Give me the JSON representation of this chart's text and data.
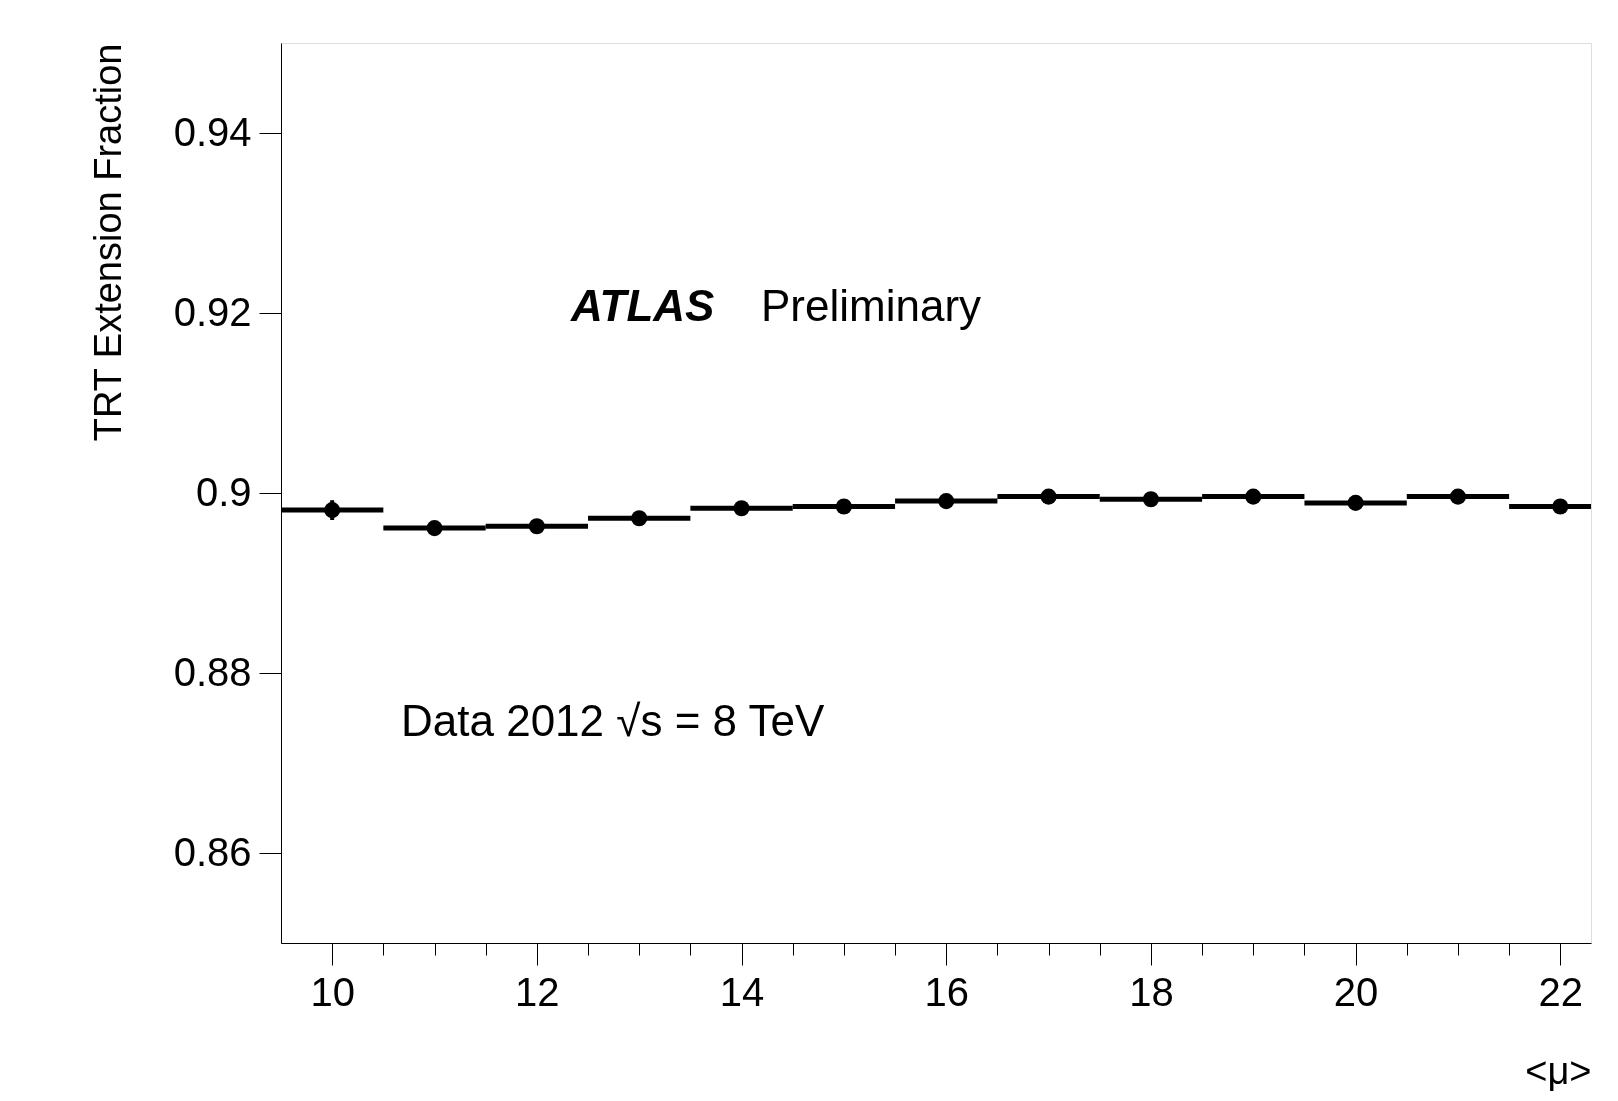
{
  "chart_data": {
    "type": "scatter",
    "xlabel": "<μ>",
    "ylabel": "TRT Extension Fraction",
    "annotations": [
      "ATLAS",
      "Preliminary",
      "Data 2012 √s = 8 TeV"
    ],
    "x": [
      10,
      11,
      12,
      13,
      14,
      15,
      16,
      17,
      18,
      19,
      20,
      21,
      22
    ],
    "values": [
      0.8981,
      0.8961,
      0.8963,
      0.8972,
      0.8983,
      0.8985,
      0.8991,
      0.8996,
      0.8993,
      0.8996,
      0.8989,
      0.8996,
      0.8985
    ],
    "errors": [
      0.0011,
      null,
      null,
      null,
      null,
      null,
      null,
      null,
      null,
      null,
      null,
      null,
      null
    ],
    "xerrors": [
      0.5,
      0.5,
      0.5,
      0.5,
      0.5,
      0.5,
      0.5,
      0.5,
      0.5,
      0.5,
      0.5,
      0.5,
      0.5
    ],
    "color": "#000000",
    "marker": "circle",
    "grid": false,
    "xlim": [
      9.5,
      22.3
    ],
    "ylim": [
      0.85,
      0.95
    ],
    "xticks": [
      10,
      {
        "value": 10.5,
        "label": null
      },
      {
        "value": 11,
        "label": null
      },
      {
        "value": 11.5,
        "label": null
      },
      12,
      {
        "value": 12.5,
        "label": null
      },
      {
        "value": 13,
        "label": null
      },
      {
        "value": 13.5,
        "label": null
      },
      14,
      {
        "value": 14.5,
        "label": null
      },
      {
        "value": 15,
        "label": null
      },
      {
        "value": 15.5,
        "label": null
      },
      16,
      {
        "value": 16.5,
        "label": null
      },
      {
        "value": 17,
        "label": null
      },
      {
        "value": 17.5,
        "label": null
      },
      18,
      {
        "value": 18.5,
        "label": null
      },
      {
        "value": 19,
        "label": null
      },
      {
        "value": 19.5,
        "label": null
      },
      20,
      {
        "value": 20.5,
        "label": null
      },
      {
        "value": 21,
        "label": null
      },
      {
        "value": 21.5,
        "label": null
      },
      22
    ],
    "yticks": [
      0.86,
      0.88,
      {
        "value": 0.9,
        "label": "0.9"
      },
      0.92,
      0.94
    ]
  }
}
